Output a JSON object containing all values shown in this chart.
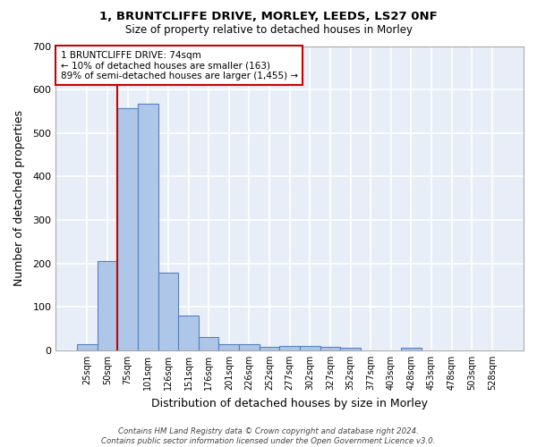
{
  "title1": "1, BRUNTCLIFFE DRIVE, MORLEY, LEEDS, LS27 0NF",
  "title2": "Size of property relative to detached houses in Morley",
  "xlabel": "Distribution of detached houses by size in Morley",
  "ylabel": "Number of detached properties",
  "categories": [
    "25sqm",
    "50sqm",
    "75sqm",
    "101sqm",
    "126sqm",
    "151sqm",
    "176sqm",
    "201sqm",
    "226sqm",
    "252sqm",
    "277sqm",
    "302sqm",
    "327sqm",
    "352sqm",
    "377sqm",
    "403sqm",
    "428sqm",
    "453sqm",
    "478sqm",
    "503sqm",
    "528sqm"
  ],
  "values": [
    13,
    205,
    558,
    568,
    178,
    80,
    30,
    15,
    13,
    7,
    10,
    10,
    8,
    5,
    0,
    0,
    5,
    0,
    0,
    0,
    0
  ],
  "bar_color": "#aec6e8",
  "bar_edge_color": "#5580bb",
  "bg_color": "#e8eef8",
  "grid_color": "#ffffff",
  "vline_color": "#cc0000",
  "annotation_text": "1 BRUNTCLIFFE DRIVE: 74sqm\n← 10% of detached houses are smaller (163)\n89% of semi-detached houses are larger (1,455) →",
  "annotation_box_color": "#ffffff",
  "annotation_box_edge": "#cc0000",
  "ylim": [
    0,
    700
  ],
  "yticks": [
    0,
    100,
    200,
    300,
    400,
    500,
    600,
    700
  ],
  "footer": "Contains HM Land Registry data © Crown copyright and database right 2024.\nContains public sector information licensed under the Open Government Licence v3.0."
}
